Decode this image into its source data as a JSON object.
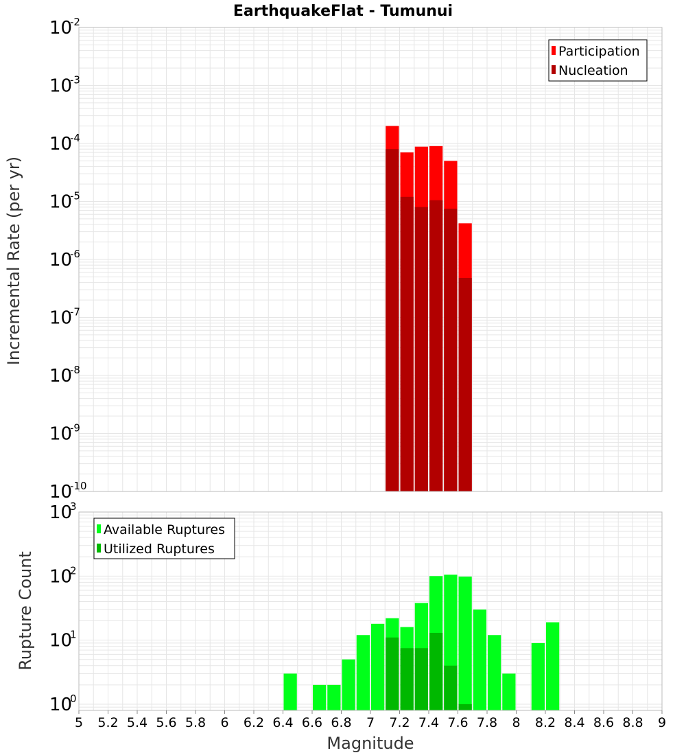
{
  "title": "EarthquakeFlat - Tumunui",
  "colors": {
    "participation": "#ff0000",
    "nucleation": "#b20000",
    "available": "#00ff1a",
    "utilized": "#00b800",
    "grid": "#e6e6e6",
    "frame": "#bbbbbb"
  },
  "chart_data": [
    {
      "type": "bar",
      "title": "EarthquakeFlat - Tumunui",
      "xlabel": "Magnitude",
      "ylabel": "Incremental Rate (per yr)",
      "yscale": "log",
      "xlim": [
        5,
        9
      ],
      "ylim": [
        1e-10,
        0.01
      ],
      "bin_width": 0.1,
      "legend_position": "top-right",
      "y_tick_exponents": [
        "-10",
        "-9",
        "-8",
        "-7",
        "-6",
        "-5",
        "-4",
        "-3",
        "-2"
      ],
      "y_tick_base": "10",
      "series": [
        {
          "name": "Participation",
          "x": [
            7.15,
            7.25,
            7.35,
            7.45,
            7.55,
            7.65
          ],
          "values": [
            0.0002,
            7e-05,
            8.8e-05,
            9e-05,
            5e-05,
            4.2e-06
          ]
        },
        {
          "name": "Nucleation",
          "x": [
            7.15,
            7.25,
            7.35,
            7.45,
            7.55,
            7.65
          ],
          "values": [
            8e-05,
            1.2e-05,
            8e-06,
            1.05e-05,
            7.5e-06,
            4.8e-07
          ]
        }
      ]
    },
    {
      "type": "bar",
      "xlabel": "Magnitude",
      "ylabel": "Rupture Count",
      "yscale": "log",
      "xlim": [
        5,
        9
      ],
      "ylim": [
        0.8,
        1000
      ],
      "bin_width": 0.1,
      "legend_position": "top-left",
      "y_tick_exponents": [
        "0",
        "1",
        "2",
        "3"
      ],
      "y_tick_base": "10",
      "x_ticks": [
        "5",
        "5.2",
        "5.4",
        "5.6",
        "5.8",
        "6",
        "6.2",
        "6.4",
        "6.6",
        "6.8",
        "7",
        "7.2",
        "7.4",
        "7.6",
        "7.8",
        "8",
        "8.2",
        "8.4",
        "8.6",
        "8.8",
        "9"
      ],
      "series": [
        {
          "name": "Available Ruptures",
          "x": [
            6.45,
            6.65,
            6.75,
            6.85,
            6.95,
            7.05,
            7.15,
            7.25,
            7.35,
            7.45,
            7.55,
            7.65,
            7.75,
            7.85,
            7.95,
            8.15,
            8.25
          ],
          "values": [
            3,
            2,
            2,
            5,
            12,
            18,
            22,
            16,
            38,
            100,
            105,
            98,
            30,
            12,
            3,
            9,
            19
          ]
        },
        {
          "name": "Utilized Ruptures",
          "x": [
            7.15,
            7.25,
            7.35,
            7.45,
            7.55,
            7.65
          ],
          "values": [
            11,
            7.5,
            7.5,
            13,
            4,
            1
          ]
        }
      ]
    }
  ]
}
